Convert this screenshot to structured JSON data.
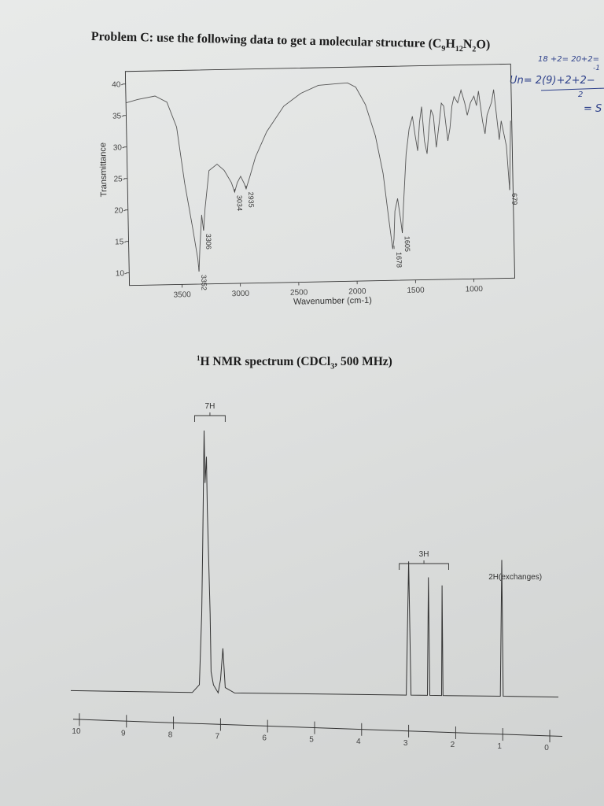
{
  "problem_prefix": "Problem C:",
  "problem_text": " use the following data to get a molecular structure (",
  "formula": {
    "C": "C",
    "c_sub": "9",
    "H": "H",
    "h_sub": "12",
    "N": "N",
    "n_sub": "2",
    "O": "O)"
  },
  "nmr_title": {
    "sup": "1",
    "text": "H NMR spectrum (CDCl",
    "sub": "3",
    "rest": ", 500 MHz)"
  },
  "handwriting": {
    "line1": "18 +2= 20+2=",
    "line2": "Un= 2(9)+2+2−",
    "line3": "2",
    "line4": "= S",
    "minus_one": "-1"
  },
  "chart_data": [
    {
      "type": "line",
      "title": "",
      "xlabel": "Wavenumber (cm-1)",
      "ylabel": "Transmittance",
      "xlim": [
        3950,
        650
      ],
      "ylim": [
        8,
        42
      ],
      "x_ticks": [
        3500,
        3000,
        2500,
        2000,
        1500,
        1000
      ],
      "x_tick_labels": [
        "3500",
        "3000",
        "2500",
        "2000",
        "1500",
        "1000"
      ],
      "y_ticks": [
        10,
        15,
        20,
        25,
        30,
        35,
        40
      ],
      "y_tick_labels": [
        "10-",
        "15-",
        "20-",
        "25-",
        "30-",
        "35-",
        "40-"
      ],
      "series": [
        {
          "x": [
            3950,
            3850,
            3700,
            3600,
            3520,
            3460,
            3400,
            3360,
            3352,
            3340,
            3320,
            3306,
            3290,
            3250,
            3180,
            3120,
            3060,
            3034,
            3010,
            2980,
            2950,
            2935,
            2900,
            2850,
            2750,
            2600,
            2450,
            2300,
            2150,
            2050,
            1980,
            1900,
            1820,
            1760,
            1720,
            1690,
            1678,
            1665,
            1640,
            1620,
            1605,
            1590,
            1560,
            1530,
            1500,
            1480,
            1460,
            1440,
            1420,
            1400,
            1380,
            1360,
            1340,
            1320,
            1300,
            1270,
            1250,
            1230,
            1200,
            1180,
            1160,
            1140,
            1110,
            1080,
            1050,
            1030,
            1000,
            970,
            950,
            930,
            900,
            880,
            860,
            840,
            820,
            800,
            780,
            760,
            740,
            720,
            700,
            679,
            660
          ],
          "y": [
            37,
            37.5,
            38,
            37,
            33,
            24,
            17,
            12,
            10,
            14,
            19,
            16.5,
            20,
            26,
            27,
            26,
            24,
            22.5,
            24,
            25,
            23.8,
            23,
            25,
            28,
            32,
            36,
            38,
            39.2,
            39.4,
            39.5,
            38.8,
            36,
            31,
            25,
            18,
            13,
            14.5,
            19,
            21,
            18,
            15.5,
            20,
            28,
            32,
            34,
            31,
            28.5,
            33,
            35.5,
            30,
            28,
            32,
            35,
            34,
            29,
            33,
            36,
            35.5,
            30,
            32,
            35.5,
            37,
            36,
            38,
            36,
            34,
            36,
            37,
            35.5,
            37.8,
            33,
            31,
            34,
            35,
            36,
            38,
            34,
            30,
            33,
            31,
            29,
            22,
            33
          ]
        }
      ],
      "annotations": [
        {
          "x": 3352,
          "y": 10,
          "label": "3352"
        },
        {
          "x": 3306,
          "y": 16.5,
          "label": "3306"
        },
        {
          "x": 3034,
          "y": 22.5,
          "label": "3034"
        },
        {
          "x": 2935,
          "y": 23,
          "label": "2935"
        },
        {
          "x": 1678,
          "y": 13,
          "label": "1678"
        },
        {
          "x": 1605,
          "y": 15.5,
          "label": "1605"
        },
        {
          "x": 679,
          "y": 22,
          "label": "679"
        }
      ]
    },
    {
      "type": "line",
      "title": "",
      "xlabel": "",
      "ylabel": "",
      "xlim": [
        10.1,
        -0.1
      ],
      "x_ticks": [
        10,
        9,
        8,
        7,
        6,
        5,
        4,
        3,
        2,
        1,
        0
      ],
      "x_tick_labels": [
        "10",
        "9",
        "8",
        "7",
        "6",
        "5",
        "4",
        "3",
        "2",
        "1",
        "0"
      ],
      "series": [
        {
          "x": [
            11,
            7.6,
            7.45,
            7.4,
            7.38,
            7.35,
            7.33,
            7.3,
            7.28,
            7.25,
            7.22,
            7.2,
            7.15,
            7.05,
            7.0,
            6.95,
            6.9,
            6.7,
            3.05,
            3.0,
            2.95,
            2.6,
            2.58,
            2.55,
            2.3,
            2.29,
            2.27,
            2.2,
            1.05,
            1.02,
            0.99,
            -0.5
          ],
          "y": [
            0,
            0,
            0.03,
            0.3,
            0.55,
            1.0,
            0.8,
            0.9,
            0.7,
            0.5,
            0.3,
            0.08,
            0.03,
            0.0,
            0.05,
            0.17,
            0.02,
            0,
            0,
            0.51,
            0,
            0,
            0.45,
            0,
            0,
            0.42,
            0,
            0,
            0,
            0.52,
            0,
            0
          ]
        }
      ],
      "integrations": [
        {
          "label": "7H"
        },
        {
          "label": "3H"
        },
        {
          "label": "2H(exchanges)"
        }
      ]
    }
  ]
}
